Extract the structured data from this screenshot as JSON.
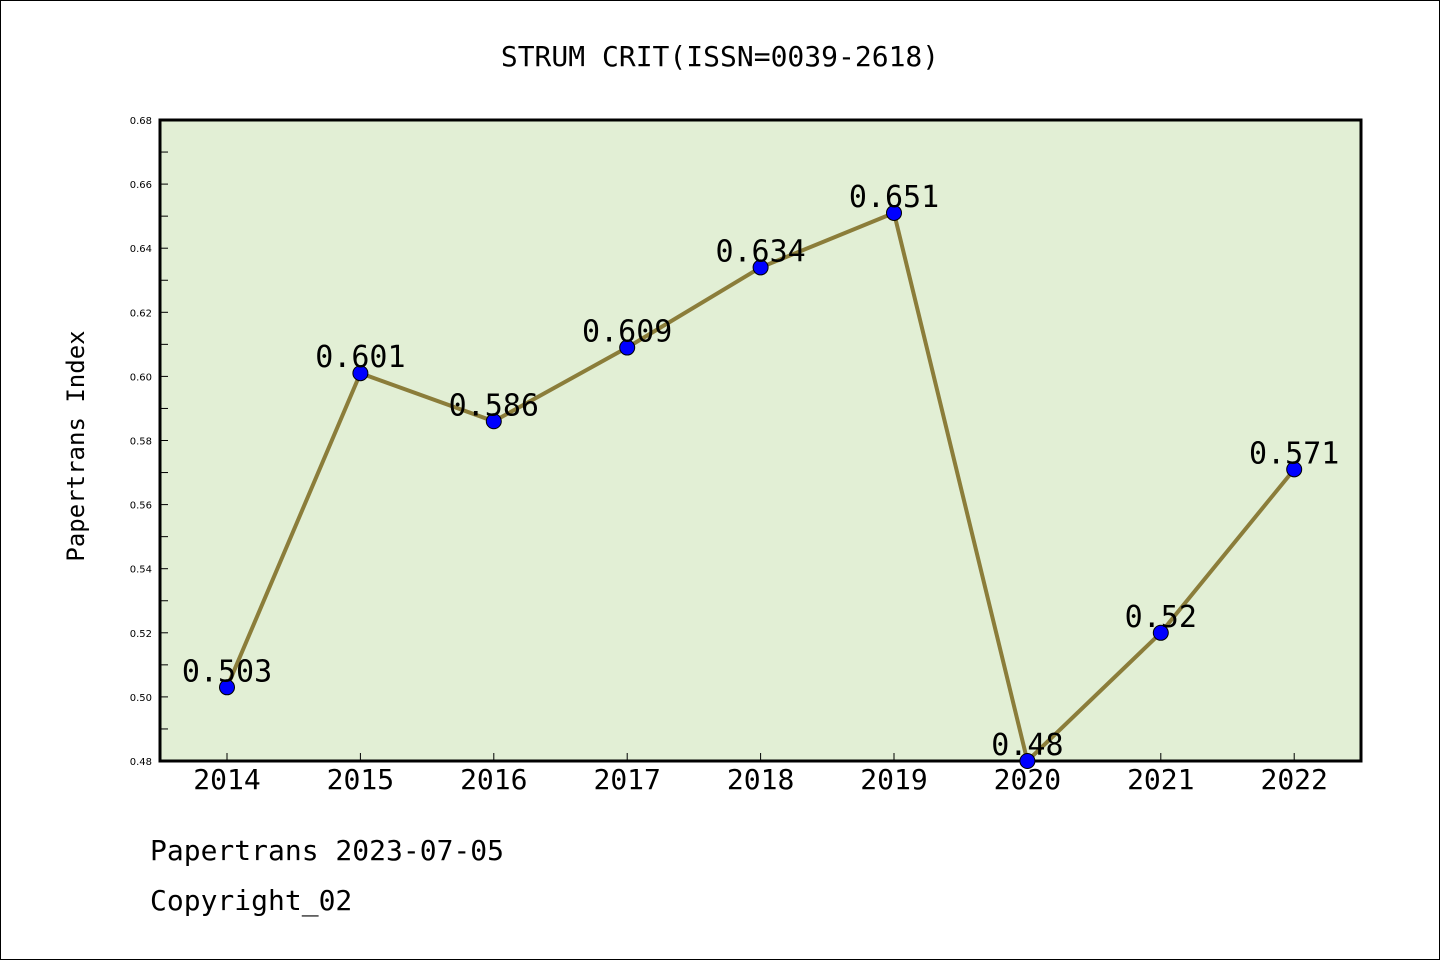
{
  "chart_data": {
    "type": "line",
    "title": "STRUM CRIT(ISSN=0039-2618)",
    "xlabel": "",
    "ylabel": "Papertrans Index",
    "categories": [
      "2014",
      "2015",
      "2016",
      "2017",
      "2018",
      "2019",
      "2020",
      "2021",
      "2022"
    ],
    "series": [
      {
        "values": [
          0.503,
          0.601,
          0.586,
          0.609,
          0.634,
          0.651,
          0.48,
          0.52,
          0.571
        ],
        "data_labels": [
          "0.503",
          "0.601",
          "0.586",
          "0.609",
          "0.634",
          "0.651",
          "0.48",
          "0.52",
          "0.571"
        ]
      }
    ],
    "ylim": [
      0.48,
      0.68
    ],
    "yticks": [
      0.48,
      0.5,
      0.52,
      0.54,
      0.56,
      0.58,
      0.6,
      0.62,
      0.64,
      0.66,
      0.68
    ],
    "ytick_labels": [
      "0.48",
      "0.50",
      "0.52",
      "0.54",
      "0.56",
      "0.58",
      "0.60",
      "0.62",
      "0.64",
      "0.66",
      "0.68"
    ],
    "grid": false,
    "legend": "none",
    "colors": {
      "plot_background": "#e2efd5",
      "line": "#8b7d3a",
      "marker": "#0000ff"
    }
  },
  "footer": {
    "source": "Papertrans 2023-07-05",
    "copyright": "Copyright_02"
  }
}
